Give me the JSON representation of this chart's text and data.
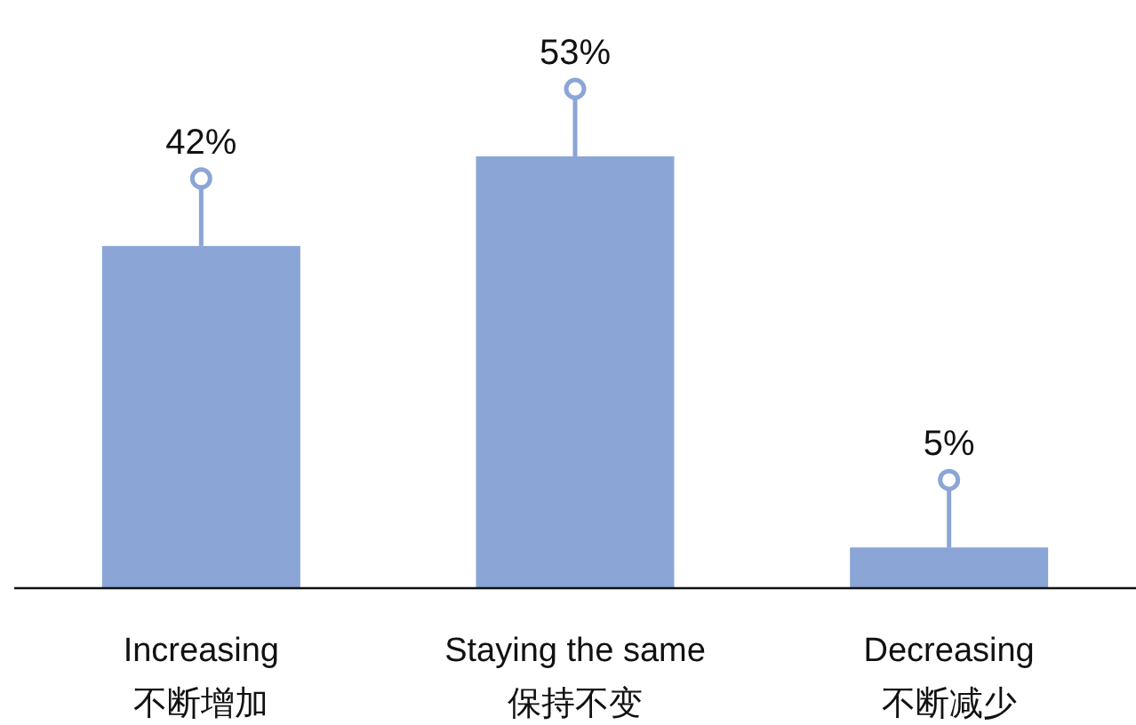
{
  "chart_data": {
    "type": "bar",
    "categories": [
      "Increasing\n不断增加",
      "Staying the same\n保持不变",
      "Decreasing\n不断减少"
    ],
    "values": [
      42,
      53,
      5
    ],
    "value_labels": [
      "42%",
      "53%",
      "5%"
    ],
    "color": "#8ba5d6"
  }
}
